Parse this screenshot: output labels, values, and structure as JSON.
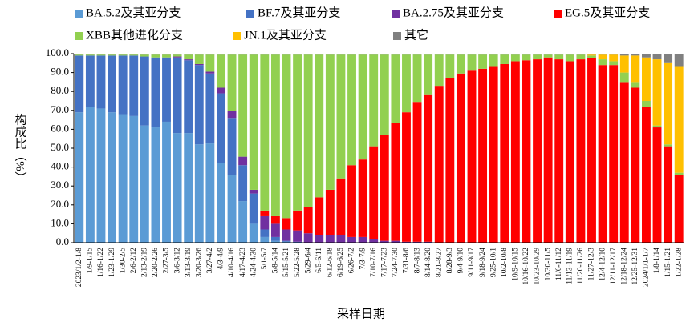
{
  "chart_data": {
    "type": "stacked_bar",
    "y_label": "构成比（%）",
    "x_label": "采样日期",
    "categories": [
      "2023/1/2-1/8",
      "1/9-1/15",
      "1/16-1/22",
      "1/23-1/29",
      "1/30-2/5",
      "2/6-2/12",
      "2/13-2/19",
      "2/20-2/26",
      "2/27-3/5",
      "3/6-3/12",
      "3/13-3/19",
      "3/20-3/26",
      "3/27-4/2",
      "4/3-4/9",
      "4/10-4/16",
      "4/17-4/23",
      "4/24-4/30",
      "5/1-5/7",
      "5/8-5/14",
      "5/15-5/21",
      "5/22-5/28",
      "5/29-6/4",
      "6/5-6/11",
      "6/12-6/18",
      "6/19-6/25",
      "6/26-7/2",
      "7/3-7/9",
      "7/10-7/16",
      "7/17-7/23",
      "7/24-7/30",
      "7/31-8/6",
      "8/7-8/13",
      "8/14-8/20",
      "8/21-8/27",
      "8/28-9/3",
      "9/4-9/10",
      "9/11-9/17",
      "9/18-9/24",
      "9/25-10/1",
      "10/2-10/8",
      "10/9-10/15",
      "10/16-10/22",
      "10/23-10/29",
      "10/30-11/5",
      "11/6-11/12",
      "11/13-11/19",
      "11/20-11/26",
      "11/27-12/3",
      "12/4-12/10",
      "12/11-12/17",
      "12/18-12/24",
      "12/25-12/31",
      "2024/1/1-1/7",
      "1/8-1/14",
      "1/15-1/21",
      "1/22-1/28"
    ],
    "series": [
      {
        "name": "BA.5.2及其亚分支",
        "color": "#5b9bd5",
        "values": [
          69,
          72,
          71,
          69,
          68,
          67,
          62,
          61,
          64,
          58,
          58,
          52,
          52.5,
          42,
          36,
          22,
          10,
          3,
          1,
          0.5,
          0,
          0,
          0,
          0,
          0,
          0,
          0,
          0,
          0,
          0,
          0,
          0,
          0,
          0,
          0,
          0,
          0,
          0,
          0,
          0,
          0,
          0,
          0,
          0,
          0,
          0,
          0,
          0,
          0,
          0,
          0,
          0,
          0,
          0,
          0,
          0
        ]
      },
      {
        "name": "BF.7及其亚分支",
        "color": "#4472c4",
        "values": [
          30,
          27,
          28,
          30,
          31,
          32,
          36.5,
          37,
          34,
          40,
          38.5,
          42,
          37,
          37,
          30,
          19,
          16,
          4,
          2,
          0.5,
          0.5,
          0,
          0,
          0,
          0,
          0,
          0,
          0,
          0,
          0,
          0,
          0,
          0,
          0,
          0,
          0,
          0,
          0,
          0,
          0,
          0,
          0,
          0,
          0,
          0,
          0,
          0,
          0,
          0,
          0,
          0,
          0,
          0,
          0,
          0,
          0
        ]
      },
      {
        "name": "BA.2.75及其亚分支",
        "color": "#7030a0",
        "values": [
          0,
          0,
          0,
          0,
          0,
          0,
          0,
          0,
          0,
          0.5,
          0.5,
          0.5,
          1,
          3,
          3.5,
          4.5,
          2,
          7,
          7,
          6,
          6,
          5,
          4,
          4,
          4,
          3,
          3,
          2,
          1,
          1,
          0.5,
          0.5,
          0.5,
          0,
          0,
          0,
          0,
          0,
          0,
          0,
          0,
          0,
          0,
          0,
          0,
          0,
          0,
          0,
          0,
          0,
          0,
          0,
          0,
          0,
          0,
          0
        ]
      },
      {
        "name": "EG.5及其亚分支",
        "color": "#ff0000",
        "values": [
          0,
          0,
          0,
          0,
          0,
          0,
          0,
          0,
          0,
          0,
          0,
          0,
          0,
          0,
          0,
          0,
          0,
          3,
          4,
          6,
          10.5,
          14,
          20,
          24,
          30,
          38,
          41,
          49,
          56,
          62.5,
          68.5,
          74,
          78,
          83,
          87,
          89.5,
          91,
          92,
          93,
          94.5,
          96,
          96.5,
          97,
          98,
          97,
          96,
          97,
          97.5,
          94,
          94,
          85,
          82,
          72,
          61,
          51,
          36
        ]
      },
      {
        "name": "XBB其他进化分支",
        "color": "#92d050",
        "values": [
          0.5,
          0.5,
          0.5,
          0.5,
          0.5,
          0.5,
          1,
          1.5,
          1.5,
          1,
          2.5,
          5,
          9,
          17.5,
          30,
          54,
          71.5,
          82.5,
          85.5,
          86.5,
          82.5,
          80.5,
          75.5,
          71.5,
          65.5,
          58.5,
          55.5,
          48.5,
          42.5,
          36,
          30.5,
          25,
          21,
          16.5,
          12.5,
          10,
          8.5,
          7.5,
          6.5,
          5,
          3.5,
          3,
          2.5,
          1.5,
          2.5,
          3.5,
          2.5,
          1.5,
          3,
          2,
          5,
          3,
          3,
          1,
          1,
          1
        ]
      },
      {
        "name": "JN.1及其亚分支",
        "color": "#ffc000",
        "values": [
          0,
          0,
          0,
          0,
          0,
          0,
          0,
          0,
          0,
          0,
          0,
          0,
          0,
          0,
          0,
          0,
          0,
          0,
          0,
          0,
          0,
          0,
          0,
          0,
          0,
          0,
          0,
          0,
          0,
          0,
          0,
          0,
          0,
          0,
          0,
          0,
          0,
          0,
          0,
          0,
          0,
          0,
          0,
          0,
          0,
          0,
          0,
          0.5,
          2.5,
          3.5,
          9,
          14,
          23,
          35,
          43,
          56
        ]
      },
      {
        "name": "其它",
        "color": "#808080",
        "values": [
          0.5,
          0.5,
          0.5,
          0.5,
          0.5,
          0.5,
          0.5,
          0.5,
          0.5,
          0.5,
          0.5,
          0.5,
          0.5,
          0.5,
          0.5,
          0.5,
          0.5,
          0.5,
          0.5,
          0.5,
          0.5,
          0.5,
          0.5,
          0.5,
          0.5,
          0.5,
          0.5,
          0.5,
          0.5,
          0.5,
          0.5,
          0.5,
          0.5,
          0.5,
          0.5,
          0.5,
          0.5,
          0.5,
          0.5,
          0.5,
          0.5,
          0.5,
          0.5,
          0.5,
          0.5,
          0.5,
          0.5,
          0.5,
          0.5,
          0.5,
          1,
          1,
          2,
          3,
          5,
          7
        ]
      }
    ],
    "ylim": [
      0,
      100
    ],
    "yticks": [
      {
        "value": 0,
        "label": "0.0"
      },
      {
        "value": 10,
        "label": "10.0"
      },
      {
        "value": 20,
        "label": "20.0"
      },
      {
        "value": 30,
        "label": "30.0"
      },
      {
        "value": 40,
        "label": "40.0"
      },
      {
        "value": 50,
        "label": "50.0"
      },
      {
        "value": 60,
        "label": "60.0"
      },
      {
        "value": 70,
        "label": "70.0"
      },
      {
        "value": 80,
        "label": "80.0"
      },
      {
        "value": 90,
        "label": "90.0"
      },
      {
        "value": 100,
        "label": "100.0"
      }
    ],
    "grid": false
  }
}
